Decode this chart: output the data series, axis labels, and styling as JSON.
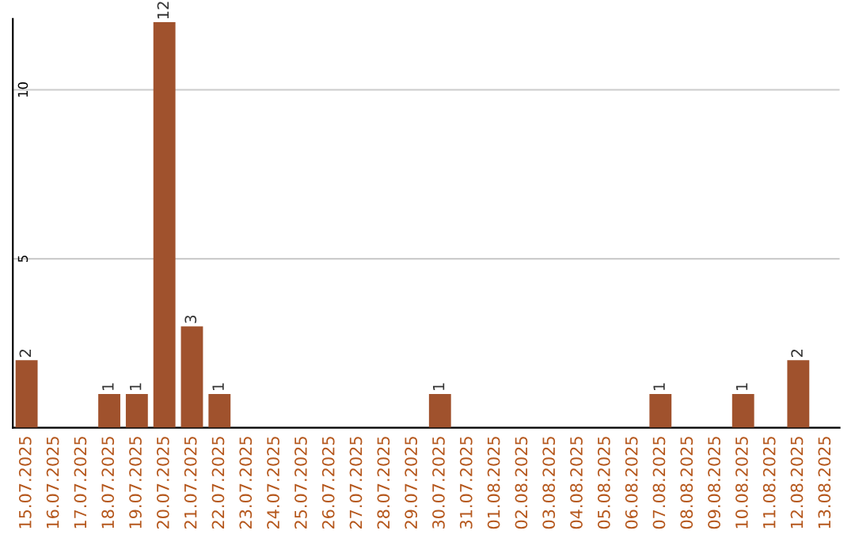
{
  "chart_data": {
    "type": "bar",
    "categories": [
      "15.07.2025",
      "16.07.2025",
      "17.07.2025",
      "18.07.2025",
      "19.07.2025",
      "20.07.2025",
      "21.07.2025",
      "22.07.2025",
      "23.07.2025",
      "24.07.2025",
      "25.07.2025",
      "26.07.2025",
      "27.07.2025",
      "28.07.2025",
      "29.07.2025",
      "30.07.2025",
      "31.07.2025",
      "01.08.2025",
      "02.08.2025",
      "03.08.2025",
      "04.08.2025",
      "05.08.2025",
      "06.08.2025",
      "07.08.2025",
      "08.08.2025",
      "09.08.2025",
      "10.08.2025",
      "11.08.2025",
      "12.08.2025",
      "13.08.2025"
    ],
    "values": [
      2,
      0,
      0,
      1,
      1,
      12,
      3,
      1,
      0,
      0,
      0,
      0,
      0,
      0,
      0,
      1,
      0,
      0,
      0,
      0,
      0,
      0,
      0,
      1,
      0,
      0,
      1,
      0,
      2,
      0
    ],
    "value_labels": [
      "2",
      null,
      null,
      "1",
      "1",
      "12",
      "3",
      "1",
      null,
      null,
      null,
      null,
      null,
      null,
      null,
      "1",
      null,
      null,
      null,
      null,
      null,
      null,
      null,
      "1",
      null,
      null,
      "1",
      null,
      "2",
      null
    ],
    "color": "#a0522d",
    "ylim": [
      0,
      12.1
    ],
    "yticks": [
      {
        "value": 0,
        "label": null
      },
      5,
      10
    ],
    "grid": "y"
  }
}
